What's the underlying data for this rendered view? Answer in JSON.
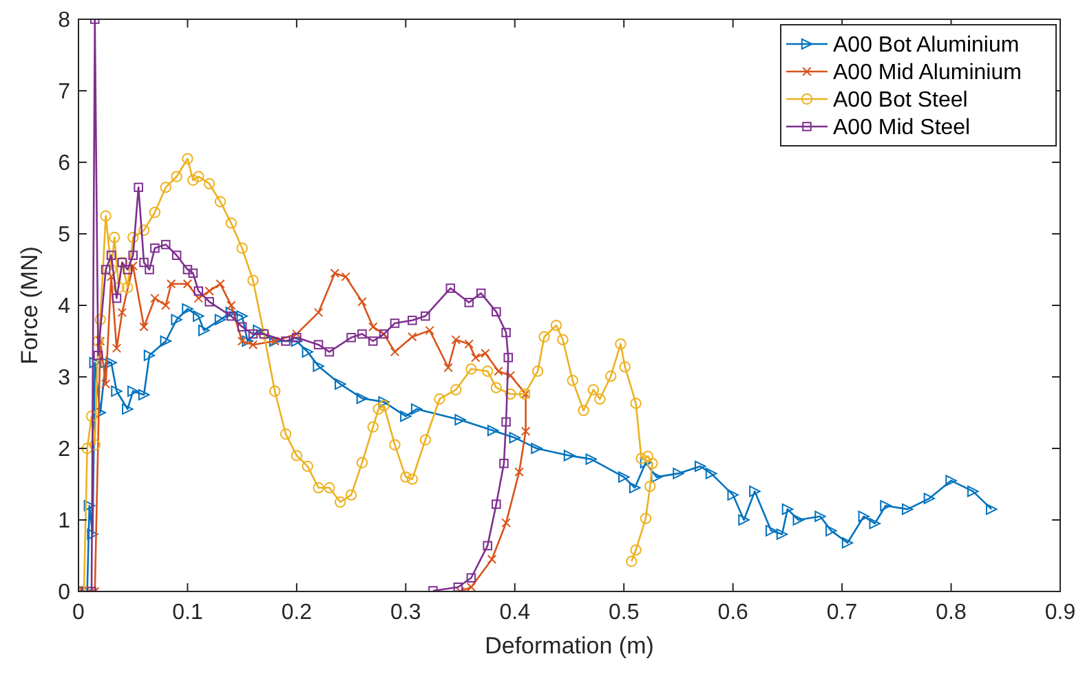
{
  "chart_data": {
    "type": "line",
    "xlabel": "Deformation (m)",
    "ylabel": "Force (MN)",
    "xlim": [
      0,
      0.9
    ],
    "ylim": [
      0,
      8
    ],
    "xticks": [
      0,
      0.1,
      0.2,
      0.3,
      0.4,
      0.5,
      0.6,
      0.7,
      0.8,
      0.9
    ],
    "yticks": [
      0,
      1,
      2,
      3,
      4,
      5,
      6,
      7,
      8
    ],
    "grid": false,
    "legend": "top right",
    "series": [
      {
        "name": "A00 Bot Aluminium",
        "color": "#0072bd",
        "marker": "triangle",
        "x": [
          0,
          0.008,
          0.01,
          0.013,
          0.015,
          0.02,
          0.025,
          0.03,
          0.035,
          0.045,
          0.05,
          0.06,
          0.065,
          0.08,
          0.09,
          0.1,
          0.11,
          0.115,
          0.13,
          0.14,
          0.15,
          0.155,
          0.165,
          0.18,
          0.2,
          0.21,
          0.22,
          0.24,
          0.26,
          0.28,
          0.3,
          0.31,
          0.35,
          0.38,
          0.4,
          0.42,
          0.45,
          0.47,
          0.5,
          0.51,
          0.52,
          0.53,
          0.55,
          0.57,
          0.58,
          0.6,
          0.61,
          0.62,
          0.635,
          0.645,
          0.65,
          0.66,
          0.68,
          0.69,
          0.705,
          0.72,
          0.73,
          0.74,
          0.76,
          0.78,
          0.8,
          0.82,
          0.837
        ],
        "values": [
          0,
          0,
          1.2,
          0.8,
          3.2,
          2.5,
          3.2,
          3.2,
          2.8,
          2.55,
          2.8,
          2.75,
          3.3,
          3.5,
          3.8,
          3.95,
          3.85,
          3.65,
          3.8,
          3.9,
          3.85,
          3.5,
          3.65,
          3.5,
          3.5,
          3.35,
          3.15,
          2.9,
          2.7,
          2.65,
          2.45,
          2.55,
          2.4,
          2.25,
          2.15,
          2.0,
          1.9,
          1.85,
          1.6,
          1.45,
          1.8,
          1.6,
          1.65,
          1.75,
          1.65,
          1.35,
          1.0,
          1.4,
          0.85,
          0.8,
          1.15,
          1.0,
          1.05,
          0.85,
          0.68,
          1.05,
          0.95,
          1.2,
          1.15,
          1.3,
          1.55,
          1.4,
          1.15
        ]
      },
      {
        "name": "A00 Mid Aluminium",
        "color": "#d95319",
        "marker": "cross",
        "x": [
          0,
          0.015,
          0.02,
          0.025,
          0.03,
          0.035,
          0.04,
          0.05,
          0.06,
          0.07,
          0.08,
          0.085,
          0.1,
          0.11,
          0.12,
          0.13,
          0.14,
          0.15,
          0.16,
          0.18,
          0.2,
          0.22,
          0.235,
          0.245,
          0.26,
          0.27,
          0.28,
          0.29,
          0.306,
          0.322,
          0.339,
          0.346,
          0.358,
          0.364,
          0.373,
          0.385,
          0.396,
          0.41,
          0.41,
          0.404,
          0.392,
          0.379,
          0.36,
          0.35
        ],
        "values": [
          0,
          0,
          3.5,
          2.9,
          4.4,
          3.4,
          3.9,
          4.55,
          3.7,
          4.1,
          4.0,
          4.3,
          4.3,
          4.1,
          4.2,
          4.3,
          4.0,
          3.5,
          3.45,
          3.5,
          3.6,
          3.9,
          4.45,
          4.4,
          4.05,
          3.7,
          3.6,
          3.35,
          3.56,
          3.65,
          3.13,
          3.52,
          3.46,
          3.27,
          3.33,
          3.08,
          3.02,
          2.76,
          2.24,
          1.67,
          0.96,
          0.45,
          0.06,
          0
        ]
      },
      {
        "name": "A00 Bot Steel",
        "color": "#edb120",
        "marker": "circle",
        "x": [
          0,
          0.005,
          0.008,
          0.012,
          0.015,
          0.018,
          0.02,
          0.025,
          0.03,
          0.033,
          0.037,
          0.04,
          0.045,
          0.05,
          0.06,
          0.07,
          0.08,
          0.09,
          0.1,
          0.105,
          0.11,
          0.12,
          0.13,
          0.14,
          0.15,
          0.16,
          0.17,
          0.18,
          0.19,
          0.2,
          0.21,
          0.22,
          0.23,
          0.24,
          0.25,
          0.26,
          0.27,
          0.275,
          0.28,
          0.29,
          0.3,
          0.306,
          0.318,
          0.331,
          0.346,
          0.36,
          0.375,
          0.383,
          0.396,
          0.409,
          0.421,
          0.427,
          0.438,
          0.444,
          0.453,
          0.463,
          0.472,
          0.478,
          0.488,
          0.497,
          0.501,
          0.511,
          0.516,
          0.522,
          0.526,
          0.524,
          0.52,
          0.511,
          0.507
        ],
        "values": [
          0,
          0,
          2.0,
          2.45,
          2.05,
          3.5,
          3.8,
          5.25,
          4.5,
          4.95,
          4.25,
          4.6,
          4.25,
          4.95,
          5.05,
          5.3,
          5.65,
          5.8,
          6.05,
          5.75,
          5.8,
          5.7,
          5.45,
          5.15,
          4.8,
          4.35,
          3.6,
          2.8,
          2.2,
          1.9,
          1.75,
          1.45,
          1.45,
          1.25,
          1.35,
          1.8,
          2.3,
          2.55,
          2.6,
          2.05,
          1.6,
          1.57,
          2.12,
          2.69,
          2.82,
          3.11,
          3.08,
          2.85,
          2.76,
          2.76,
          3.08,
          3.56,
          3.72,
          3.52,
          2.95,
          2.53,
          2.82,
          2.69,
          3.01,
          3.46,
          3.14,
          2.63,
          1.86,
          1.89,
          1.79,
          1.47,
          1.02,
          0.58,
          0.42
        ]
      },
      {
        "name": "A00 Mid Steel",
        "color": "#7e2f8e",
        "marker": "square",
        "x": [
          0,
          0.012,
          0.015,
          0.018,
          0.025,
          0.03,
          0.035,
          0.04,
          0.045,
          0.05,
          0.055,
          0.06,
          0.065,
          0.07,
          0.08,
          0.09,
          0.1,
          0.105,
          0.11,
          0.12,
          0.14,
          0.15,
          0.16,
          0.17,
          0.19,
          0.2,
          0.22,
          0.23,
          0.25,
          0.26,
          0.27,
          0.28,
          0.29,
          0.306,
          0.318,
          0.341,
          0.358,
          0.369,
          0.383,
          0.392,
          0.394,
          0.392,
          0.39,
          0.383,
          0.375,
          0.36,
          0.348,
          0.325
        ],
        "values": [
          0,
          0,
          8,
          3.3,
          4.5,
          4.7,
          4.1,
          4.6,
          4.5,
          4.7,
          5.65,
          4.6,
          4.5,
          4.8,
          4.85,
          4.7,
          4.5,
          4.45,
          4.2,
          4.05,
          3.85,
          3.7,
          3.6,
          3.6,
          3.5,
          3.55,
          3.45,
          3.35,
          3.55,
          3.6,
          3.5,
          3.6,
          3.75,
          3.79,
          3.85,
          4.24,
          4.04,
          4.17,
          3.91,
          3.62,
          3.27,
          2.37,
          1.79,
          1.22,
          0.64,
          0.19,
          0.06,
          0.01
        ]
      }
    ]
  }
}
